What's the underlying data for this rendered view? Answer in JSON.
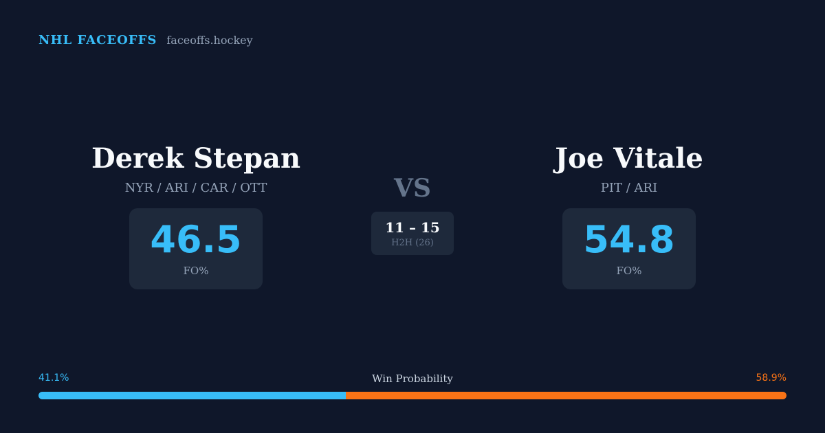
{
  "brand": {
    "name": "NHL FACEOFFS",
    "site": "faceoffs.hockey"
  },
  "players": {
    "left": {
      "name": "Derek Stepan",
      "teams": "NYR / ARI / CAR / OTT",
      "fo_pct": "46.5",
      "fo_label": "FO%"
    },
    "right": {
      "name": "Joe Vitale",
      "teams": "PIT / ARI",
      "fo_pct": "54.8",
      "fo_label": "FO%"
    }
  },
  "matchup": {
    "vs_label": "VS",
    "h2h_score": "11 – 15",
    "h2h_label": "H2H (26)"
  },
  "win_probability": {
    "title": "Win Probability",
    "left_label": "41.1%",
    "right_label": "58.9%",
    "left_value": 41.1,
    "right_value": 58.9
  },
  "colors": {
    "background": "#0f172a",
    "card": "#1e293b",
    "accent_left": "#38bdf8",
    "accent_right": "#f97316"
  }
}
